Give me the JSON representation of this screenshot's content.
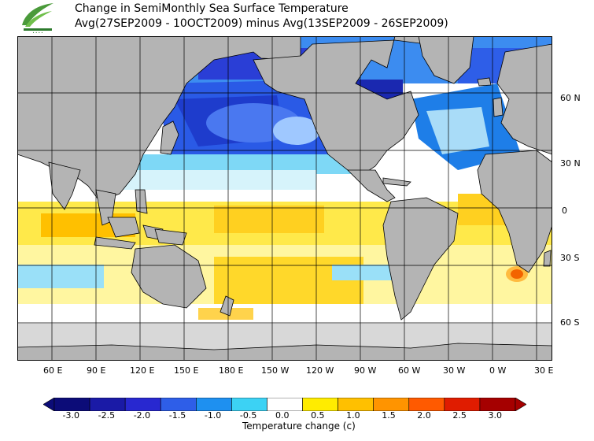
{
  "header": {
    "title_line1": "Change in SemiMonthly Sea Surface Temperature",
    "title_line2": "Avg(27SEP2009 - 10OCT2009) minus Avg(13SEP2009 - 26SEP2009)"
  },
  "map": {
    "projection": "equirectangular",
    "longitude_labels": [
      "60 E",
      "90 E",
      "120 E",
      "150 E",
      "180 E",
      "150 W",
      "120 W",
      "90 W",
      "60 W",
      "30 W",
      "0 W",
      "30 E"
    ],
    "latitude_labels": [
      "60 N",
      "30 N",
      "0",
      "30 S",
      "60 S"
    ],
    "land_color": "#b4b4b4",
    "ice_color": "#d8d8d8"
  },
  "colorbar": {
    "title": "Temperature change  (c)",
    "tick_labels": [
      "-3.0",
      "-2.5",
      "-2.0",
      "-1.5",
      "-1.0",
      "-0.5",
      "0.0",
      "0.5",
      "1.0",
      "1.5",
      "2.0",
      "2.5",
      "3.0"
    ],
    "colors": [
      "#0c0c78",
      "#1a1aa6",
      "#2828d0",
      "#2e5ee8",
      "#1e90f0",
      "#3cd2f4",
      "#ffffff",
      "#ffec00",
      "#ffc000",
      "#ff9400",
      "#ff5a00",
      "#e01c00",
      "#a50000"
    ]
  }
}
